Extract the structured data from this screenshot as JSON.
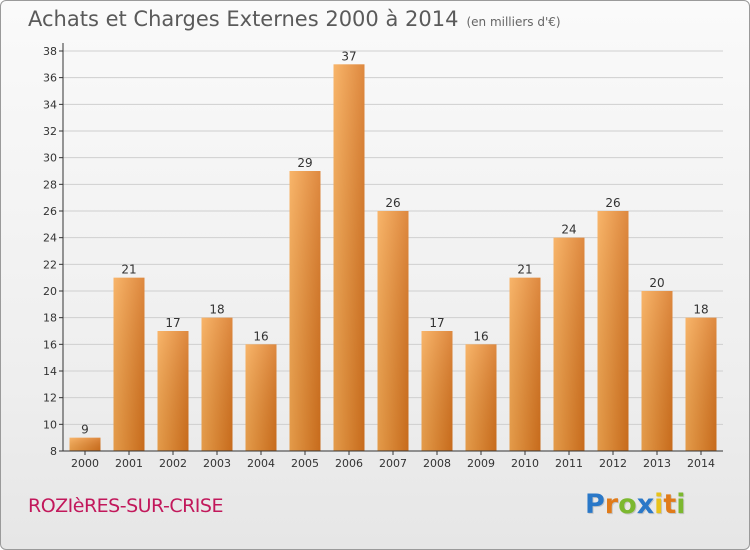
{
  "header": {
    "title": "Achats et Charges Externes 2000 à 2014",
    "subtitle": "(en milliers d'€)"
  },
  "footer": {
    "city": "ROZIèRES-SUR-CRISE",
    "logo": {
      "text": "Proxiti",
      "letters": [
        {
          "ch": "P",
          "color": "#2a78c8"
        },
        {
          "ch": "r",
          "color": "#e07b1a"
        },
        {
          "ch": "o",
          "color": "#7cb82f"
        },
        {
          "ch": "x",
          "color": "#2a78c8"
        },
        {
          "ch": "i",
          "color": "#e8c21a"
        },
        {
          "ch": "t",
          "color": "#e07b1a"
        },
        {
          "ch": "i",
          "color": "#7cb82f"
        }
      ]
    }
  },
  "colors": {
    "bar_light": "#f7a850",
    "bar_dark": "#d8741e",
    "axis": "#333333",
    "grid": "#cfcfcf",
    "text": "#333333"
  },
  "chart_data": {
    "type": "bar",
    "categories": [
      "2000",
      "2001",
      "2002",
      "2003",
      "2004",
      "2005",
      "2006",
      "2007",
      "2008",
      "2009",
      "2010",
      "2011",
      "2012",
      "2013",
      "2014"
    ],
    "values": [
      9,
      21,
      17,
      18,
      16,
      29,
      37,
      26,
      17,
      16,
      21,
      24,
      26,
      20,
      18
    ],
    "ylim": [
      8,
      38
    ],
    "yticks": [
      8,
      10,
      12,
      14,
      16,
      18,
      20,
      22,
      24,
      26,
      28,
      30,
      32,
      34,
      36,
      38
    ],
    "grid": true,
    "title": "Achats et Charges Externes 2000 à 2014",
    "subtitle": "(en milliers d'€)",
    "xlabel": "",
    "ylabel": ""
  }
}
